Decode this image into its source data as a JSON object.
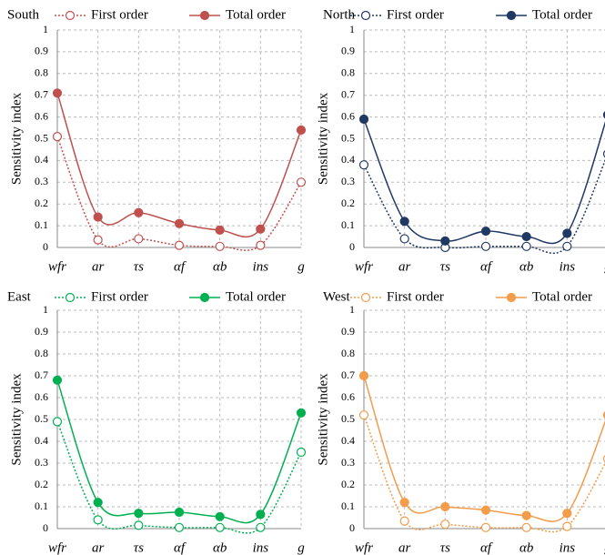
{
  "chart_data": [
    {
      "type": "line",
      "title": "South",
      "ylabel": "Sensitivity index",
      "categories": [
        "wfr",
        "ar",
        "τs",
        "αf",
        "αb",
        "ins",
        "g"
      ],
      "series": [
        {
          "name": "First order",
          "color": "#c0504d",
          "style": "dotted",
          "marker": "open",
          "values": [
            0.51,
            0.035,
            0.04,
            0.01,
            0.005,
            0.01,
            0.3
          ]
        },
        {
          "name": "Total order",
          "color": "#c0504d",
          "style": "solid",
          "marker": "filled",
          "values": [
            0.71,
            0.14,
            0.16,
            0.11,
            0.08,
            0.085,
            0.54
          ]
        }
      ],
      "ylim": [
        0,
        1
      ],
      "yticks": [
        0,
        0.1,
        0.2,
        0.3,
        0.4,
        0.5,
        0.6,
        0.7,
        0.8,
        0.9,
        1
      ],
      "grid": true,
      "smooth": true
    },
    {
      "type": "line",
      "title": "North",
      "ylabel": "Sensitivity index",
      "categories": [
        "wfr",
        "ar",
        "τs",
        "αf",
        "αb",
        "ins",
        "g"
      ],
      "series": [
        {
          "name": "First order",
          "color": "#203864",
          "style": "dotted",
          "marker": "open",
          "values": [
            0.38,
            0.04,
            0.0,
            0.005,
            0.005,
            0.005,
            0.43
          ]
        },
        {
          "name": "Total order",
          "color": "#203864",
          "style": "solid",
          "marker": "filled",
          "values": [
            0.59,
            0.12,
            0.03,
            0.075,
            0.05,
            0.065,
            0.61
          ]
        }
      ],
      "ylim": [
        0,
        1
      ],
      "yticks": [
        0,
        0.1,
        0.2,
        0.3,
        0.4,
        0.5,
        0.6,
        0.7,
        0.8,
        0.9,
        1
      ],
      "grid": true,
      "smooth": true
    },
    {
      "type": "line",
      "title": "East",
      "ylabel": "Sensitivity index",
      "categories": [
        "wfr",
        "ar",
        "τs",
        "αf",
        "αb",
        "ins",
        "g"
      ],
      "series": [
        {
          "name": "First order",
          "color": "#00b050",
          "style": "dotted",
          "marker": "open",
          "values": [
            0.49,
            0.04,
            0.015,
            0.005,
            0.005,
            0.005,
            0.35
          ]
        },
        {
          "name": "Total order",
          "color": "#00b050",
          "style": "solid",
          "marker": "filled",
          "values": [
            0.68,
            0.12,
            0.07,
            0.075,
            0.055,
            0.065,
            0.53
          ]
        }
      ],
      "ylim": [
        0,
        1
      ],
      "yticks": [
        0,
        0.1,
        0.2,
        0.3,
        0.4,
        0.5,
        0.6,
        0.7,
        0.8,
        0.9,
        1
      ],
      "grid": true,
      "smooth": true
    },
    {
      "type": "line",
      "title": "West",
      "ylabel": "Sensitivity index",
      "categories": [
        "wfr",
        "ar",
        "τs",
        "αf",
        "αb",
        "ins",
        "g"
      ],
      "series": [
        {
          "name": "First order",
          "color": "#f39c4a",
          "style": "dotted",
          "marker": "open",
          "values": [
            0.52,
            0.035,
            0.02,
            0.005,
            0.005,
            0.01,
            0.32
          ]
        },
        {
          "name": "Total order",
          "color": "#f39c4a",
          "style": "solid",
          "marker": "filled",
          "values": [
            0.7,
            0.12,
            0.1,
            0.085,
            0.06,
            0.07,
            0.52
          ]
        }
      ],
      "ylim": [
        0,
        1
      ],
      "yticks": [
        0,
        0.1,
        0.2,
        0.3,
        0.4,
        0.5,
        0.6,
        0.7,
        0.8,
        0.9,
        1
      ],
      "grid": true,
      "smooth": true
    }
  ]
}
